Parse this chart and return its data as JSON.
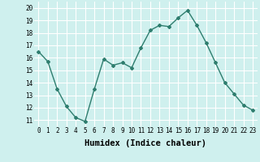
{
  "x": [
    0,
    1,
    2,
    3,
    4,
    5,
    6,
    7,
    8,
    9,
    10,
    11,
    12,
    13,
    14,
    15,
    16,
    17,
    18,
    19,
    20,
    21,
    22,
    23
  ],
  "y": [
    16.5,
    15.7,
    13.5,
    12.1,
    11.2,
    10.9,
    13.5,
    15.9,
    15.4,
    15.6,
    15.2,
    16.8,
    18.2,
    18.6,
    18.5,
    19.2,
    19.8,
    18.6,
    17.2,
    15.6,
    14.0,
    13.1,
    12.2,
    11.8
  ],
  "line_color": "#2e7d6e",
  "marker": "D",
  "marker_size": 2.0,
  "linewidth": 1.0,
  "xlabel": "Humidex (Indice chaleur)",
  "xlim": [
    -0.5,
    23.5
  ],
  "ylim": [
    10.5,
    20.5
  ],
  "yticks": [
    11,
    12,
    13,
    14,
    15,
    16,
    17,
    18,
    19,
    20
  ],
  "xticks": [
    0,
    1,
    2,
    3,
    4,
    5,
    6,
    7,
    8,
    9,
    10,
    11,
    12,
    13,
    14,
    15,
    16,
    17,
    18,
    19,
    20,
    21,
    22,
    23
  ],
  "background_color": "#cff0ee",
  "grid_color": "#ffffff",
  "tick_label_fontsize": 5.5,
  "xlabel_fontsize": 7.5
}
